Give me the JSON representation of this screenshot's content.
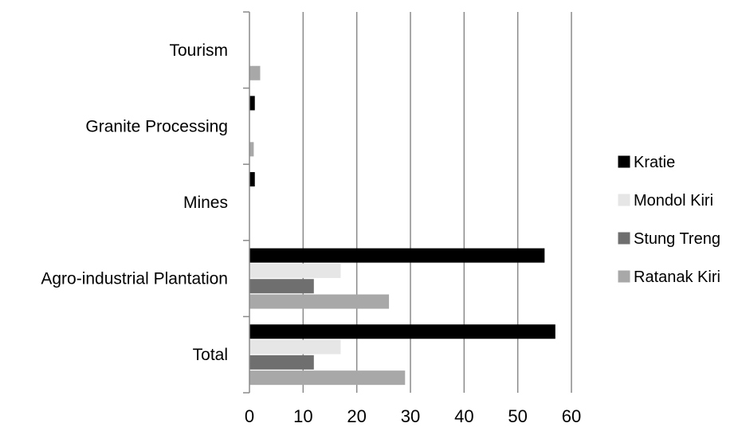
{
  "chart_data": {
    "type": "bar",
    "orientation": "horizontal",
    "categories": [
      "Tourism",
      "Granite Processing",
      "Mines",
      "Agro-industrial Plantation",
      "Total"
    ],
    "series": [
      {
        "name": "Kratie",
        "color": "#000000",
        "values": [
          0,
          1,
          1,
          55,
          57
        ]
      },
      {
        "name": "Mondol Kiri",
        "color": "#e6e6e6",
        "values": [
          0,
          0,
          0,
          17,
          17
        ]
      },
      {
        "name": "Stung Treng",
        "color": "#6f6f6f",
        "values": [
          0,
          0,
          0,
          12,
          12
        ]
      },
      {
        "name": "Ratanak Kiri",
        "color": "#a8a8a8",
        "values": [
          2,
          0.8,
          0,
          26,
          29
        ]
      }
    ],
    "xlim": [
      0,
      60
    ],
    "xticks": [
      "0",
      "10",
      "20",
      "30",
      "40",
      "50",
      "60"
    ],
    "grid": "vertical",
    "legend_position": "right"
  }
}
